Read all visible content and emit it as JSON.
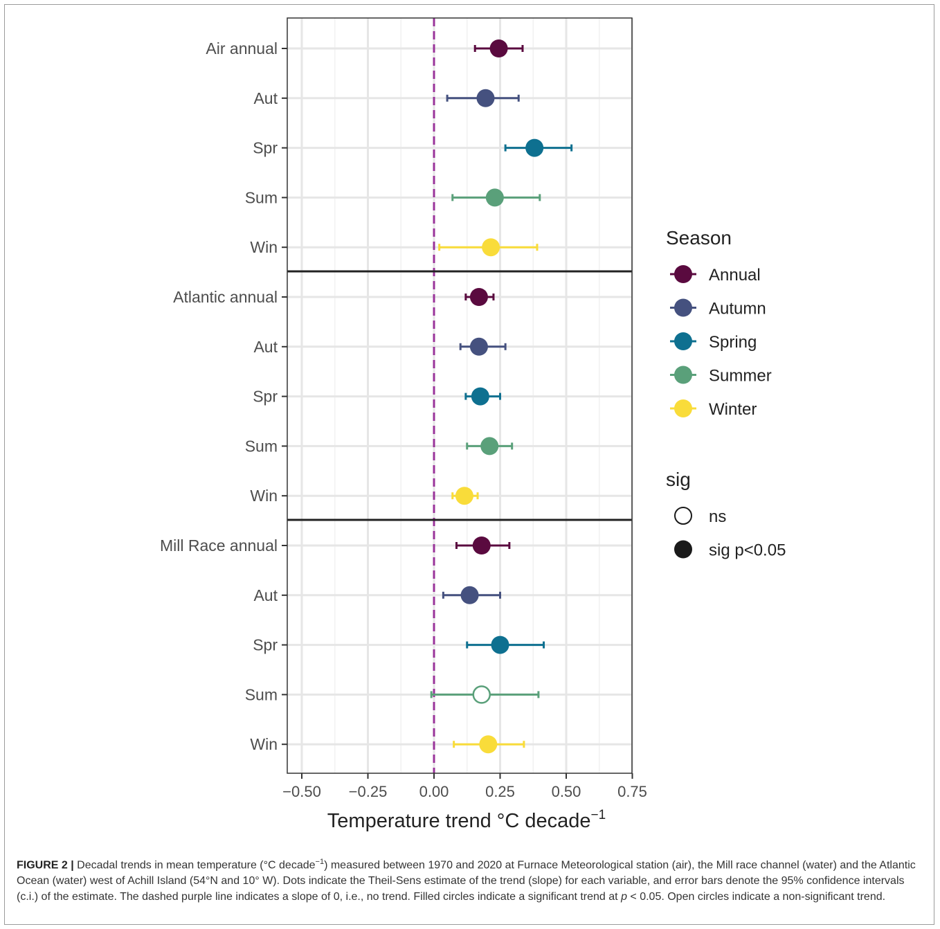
{
  "chart_data": {
    "type": "scatter",
    "xlabel": "Temperature trend °C decade",
    "xlabel_superscript": "−1",
    "xlim": [
      -0.56,
      0.75
    ],
    "xticks": [
      -0.5,
      -0.25,
      0.0,
      0.25,
      0.5,
      0.75
    ],
    "xtick_labels": [
      "−0.50",
      "−0.25",
      "0.00",
      "0.25",
      "0.50",
      "0.75"
    ],
    "reference_line": {
      "x": 0.0,
      "style": "dashed",
      "color": "#993399"
    },
    "grid": true,
    "groups": [
      {
        "rows": [
          {
            "label": "Air annual",
            "season": "Annual",
            "estimate": 0.245,
            "lower": 0.155,
            "upper": 0.335,
            "sig": "sig p<0.05"
          },
          {
            "label": "Aut",
            "season": "Autumn",
            "estimate": 0.195,
            "lower": 0.05,
            "upper": 0.32,
            "sig": "sig p<0.05"
          },
          {
            "label": "Spr",
            "season": "Spring",
            "estimate": 0.38,
            "lower": 0.27,
            "upper": 0.52,
            "sig": "sig p<0.05"
          },
          {
            "label": "Sum",
            "season": "Summer",
            "estimate": 0.23,
            "lower": 0.07,
            "upper": 0.4,
            "sig": "sig p<0.05"
          },
          {
            "label": "Win",
            "season": "Winter",
            "estimate": 0.215,
            "lower": 0.02,
            "upper": 0.39,
            "sig": "sig p<0.05"
          }
        ]
      },
      {
        "rows": [
          {
            "label": "Atlantic annual",
            "season": "Annual",
            "estimate": 0.17,
            "lower": 0.12,
            "upper": 0.225,
            "sig": "sig p<0.05"
          },
          {
            "label": "Aut",
            "season": "Autumn",
            "estimate": 0.17,
            "lower": 0.1,
            "upper": 0.27,
            "sig": "sig p<0.05"
          },
          {
            "label": "Spr",
            "season": "Spring",
            "estimate": 0.175,
            "lower": 0.12,
            "upper": 0.25,
            "sig": "sig p<0.05"
          },
          {
            "label": "Sum",
            "season": "Summer",
            "estimate": 0.21,
            "lower": 0.125,
            "upper": 0.295,
            "sig": "sig p<0.05"
          },
          {
            "label": "Win",
            "season": "Winter",
            "estimate": 0.115,
            "lower": 0.07,
            "upper": 0.165,
            "sig": "sig p<0.05"
          }
        ]
      },
      {
        "rows": [
          {
            "label": "Mill Race annual",
            "season": "Annual",
            "estimate": 0.18,
            "lower": 0.085,
            "upper": 0.285,
            "sig": "sig p<0.05"
          },
          {
            "label": "Aut",
            "season": "Autumn",
            "estimate": 0.135,
            "lower": 0.035,
            "upper": 0.25,
            "sig": "sig p<0.05"
          },
          {
            "label": "Spr",
            "season": "Spring",
            "estimate": 0.25,
            "lower": 0.125,
            "upper": 0.415,
            "sig": "sig p<0.05"
          },
          {
            "label": "Sum",
            "season": "Summer",
            "estimate": 0.18,
            "lower": -0.01,
            "upper": 0.395,
            "sig": "ns"
          },
          {
            "label": "Win",
            "season": "Winter",
            "estimate": 0.205,
            "lower": 0.075,
            "upper": 0.34,
            "sig": "sig p<0.05"
          }
        ]
      }
    ],
    "legend": {
      "placement": "right",
      "season_title": "Season",
      "seasons": [
        {
          "name": "Annual",
          "color": "#5a0a3f"
        },
        {
          "name": "Autumn",
          "color": "#45517f"
        },
        {
          "name": "Spring",
          "color": "#0e7090"
        },
        {
          "name": "Summer",
          "color": "#5aa07a"
        },
        {
          "name": "Winter",
          "color": "#f9dc3a"
        }
      ],
      "sig_title": "sig",
      "sig_items": [
        {
          "name": "ns",
          "filled": false
        },
        {
          "name": "sig p<0.05",
          "filled": true
        }
      ]
    }
  },
  "caption": {
    "label": "FIGURE 2 |",
    "text_before_sup": " Decadal trends in mean temperature (°C decade",
    "sup": "−1",
    "text_after_sup": ") measured between 1970 and 2020 at Furnace Meteorological station (air), the Mill race channel (water) and the Atlantic Ocean (water) west of Achill Island (54°N and 10° W). Dots indicate the Theil-Sens estimate of the trend (slope) for each variable, and error bars denote the 95% confidence intervals (c.i.) of the estimate. The dashed purple line indicates a slope of 0, i.e., no trend. Filled circles indicate a significant trend at ",
    "p_italic": "p",
    "text_end": " < 0.05. Open circles indicate a non-significant trend."
  }
}
